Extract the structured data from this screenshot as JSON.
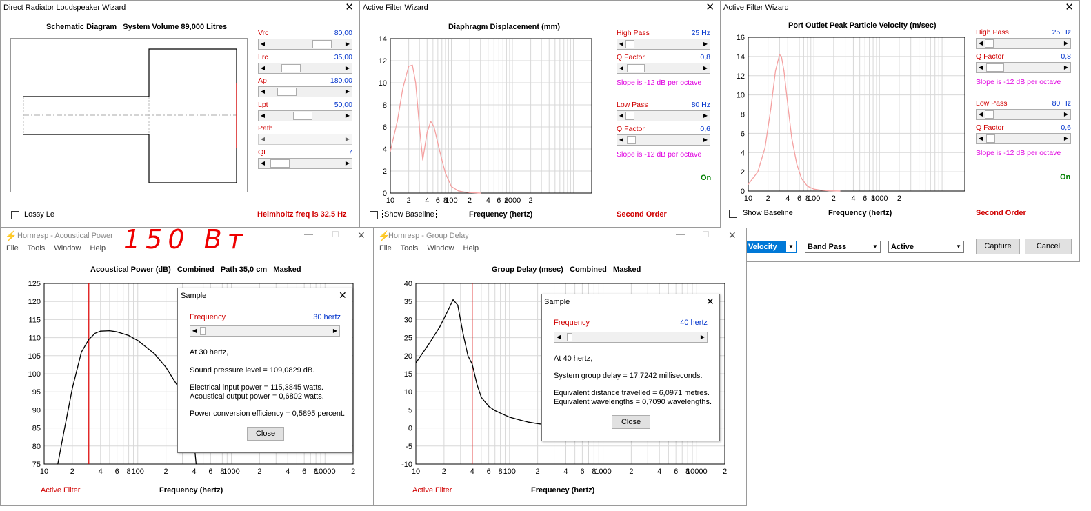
{
  "colors": {
    "accent_red": "#d00000",
    "value_blue": "#0033cc",
    "slope_magenta": "#e000e0",
    "on_green": "#008000",
    "curve_pink": "#f4a0a0"
  },
  "win1": {
    "title": "Direct Radiator Loudspeaker Wizard",
    "heading": "Schematic Diagram   System Volume 89,000 Litres",
    "sliders": [
      {
        "label": "Vrc",
        "value": "80,00",
        "pos": 0.78
      },
      {
        "label": "Lrc",
        "value": "35,00",
        "pos": 0.25
      },
      {
        "label": "Ap",
        "value": "180,00",
        "pos": 0.18
      },
      {
        "label": "Lpt",
        "value": "50,00",
        "pos": 0.45
      },
      {
        "label": "Path",
        "value": "",
        "pos": 0.0
      },
      {
        "label": "QL",
        "value": "7",
        "pos": 0.06
      }
    ],
    "lossy": "Lossy Le",
    "helmholtz": "Helmholtz freq is 32,5 Hz"
  },
  "win2": {
    "title": "Active Filter Wizard",
    "heading": "Diaphragm Displacement (mm)",
    "high_pass_label": "High Pass",
    "high_pass_value": "25 Hz",
    "q1_label": "Q Factor",
    "q1_value": "0,8",
    "slope1": "Slope is -12 dB per octave",
    "low_pass_label": "Low Pass",
    "low_pass_value": "80 Hz",
    "q2_label": "Q Factor",
    "q2_value": "0,6",
    "slope2": "Slope is -12 dB per octave",
    "on": "On",
    "show_baseline": "Show Baseline",
    "xlabel": "Frequency (hertz)",
    "order": "Second Order"
  },
  "win3": {
    "title": "Active Filter Wizard",
    "heading": "Port Outlet Peak Particle Velocity (m/sec)",
    "high_pass_label": "High Pass",
    "high_pass_value": "25 Hz",
    "q1_label": "Q Factor",
    "q1_value": "0,8",
    "slope1": "Slope is -12 dB per octave",
    "low_pass_label": "Low Pass",
    "low_pass_value": "80 Hz",
    "q2_label": "Q Factor",
    "q2_value": "0,6",
    "slope2": "Slope is -12 dB per octave",
    "on": "On",
    "show_baseline": "Show Baseline",
    "xlabel": "Frequency (hertz)",
    "order": "Second Order",
    "dropdowns": [
      "Velocity",
      "Band Pass",
      "Active"
    ],
    "capture": "Capture",
    "cancel": "Cancel"
  },
  "win4": {
    "title": "Hornresp - Acoustical Power",
    "menu": [
      "File",
      "Tools",
      "Window",
      "Help"
    ],
    "handwriting": "150 Вт",
    "heading": "Acoustical Power (dB)   Combined   Path 35,0 cm   Masked",
    "active_filter": "Active Filter",
    "xlabel": "Frequency (hertz)",
    "sample": {
      "title": "Sample",
      "freq_label": "Frequency",
      "freq_value": "30 hertz",
      "line1": "At 30 hertz,",
      "line2": "Sound pressure level = 109,0829 dB.",
      "line3": "Electrical input power = 115,3845 watts.",
      "line4": "Acoustical output power = 0,6802 watts.",
      "line5": "Power conversion efficiency = 0,5895 percent.",
      "close": "Close"
    }
  },
  "win5": {
    "title": "Hornresp - Group Delay",
    "menu": [
      "File",
      "Tools",
      "Window",
      "Help"
    ],
    "heading": "Group Delay (msec)   Combined   Masked",
    "active_filter": "Active Filter",
    "xlabel": "Frequency (hertz)",
    "sample": {
      "title": "Sample",
      "freq_label": "Frequency",
      "freq_value": "40 hertz",
      "line1": "At 40 hertz,",
      "line2": "System group delay = 17,7242 milliseconds.",
      "line3": "Equivalent distance travelled = 6,0971 metres.",
      "line4": "Equivalent wavelengths = 0,7090 wavelengths.",
      "close": "Close"
    }
  },
  "chart_data": [
    {
      "type": "line",
      "title": "Diaphragm Displacement (mm)",
      "xlabel": "Frequency (hertz)",
      "ylabel": "",
      "x_scale": "log",
      "xlim": [
        10,
        20000
      ],
      "ylim": [
        0,
        14
      ],
      "x_ticks": [
        "10",
        "2",
        "4",
        "6",
        "8",
        "100",
        "2",
        "4",
        "6",
        "8",
        "1000",
        "2"
      ],
      "y_ticks": [
        "0",
        "2",
        "4",
        "6",
        "8",
        "10",
        "12",
        "14"
      ],
      "series": [
        {
          "x": [
            10,
            13,
            16,
            20,
            23,
            26,
            30,
            34,
            40,
            46,
            52,
            60,
            70,
            80,
            100,
            130,
            160,
            200,
            300
          ],
          "y": [
            3.8,
            6.5,
            9.5,
            11.5,
            11.6,
            10.0,
            6.0,
            3.0,
            5.5,
            6.5,
            6.0,
            4.5,
            3.0,
            1.8,
            0.6,
            0.2,
            0.1,
            0.05,
            0
          ]
        }
      ]
    },
    {
      "type": "line",
      "title": "Port Outlet Peak Particle Velocity (m/sec)",
      "xlabel": "Frequency (hertz)",
      "ylabel": "",
      "x_scale": "log",
      "xlim": [
        10,
        20000
      ],
      "ylim": [
        0,
        16
      ],
      "x_ticks": [
        "10",
        "2",
        "4",
        "6",
        "8",
        "100",
        "2",
        "4",
        "6",
        "8",
        "1000",
        "2"
      ],
      "y_ticks": [
        "0",
        "2",
        "4",
        "6",
        "8",
        "10",
        "12",
        "14",
        "16"
      ],
      "series": [
        {
          "x": [
            10,
            14,
            18,
            22,
            26,
            30,
            32,
            35,
            40,
            46,
            55,
            65,
            80,
            100,
            130,
            170,
            250
          ],
          "y": [
            0.7,
            2.0,
            4.5,
            8.5,
            12.5,
            14.2,
            14.0,
            12.5,
            9.0,
            5.5,
            2.8,
            1.3,
            0.5,
            0.2,
            0.08,
            0.03,
            0
          ]
        }
      ]
    },
    {
      "type": "line",
      "title": "Acoustical Power (dB)   Combined   Path 35,0 cm   Masked",
      "xlabel": "Frequency (hertz)",
      "ylabel": "",
      "x_scale": "log",
      "xlim": [
        10,
        20000
      ],
      "ylim": [
        75,
        125
      ],
      "x_ticks": [
        "10",
        "2",
        "4",
        "6",
        "8",
        "100",
        "2",
        "4",
        "6",
        "8",
        "1000",
        "2",
        "4",
        "6",
        "8",
        "10000",
        "2"
      ],
      "y_ticks": [
        "75",
        "80",
        "85",
        "90",
        "95",
        "100",
        "105",
        "110",
        "115",
        "120",
        "125"
      ],
      "marker_x": 30,
      "series": [
        {
          "x": [
            14,
            16,
            20,
            25,
            30,
            35,
            40,
            50,
            60,
            80,
            100,
            150,
            200,
            300,
            380,
            420
          ],
          "y": [
            75,
            83,
            96,
            106,
            109.5,
            111.2,
            111.8,
            111.9,
            111.6,
            110.6,
            109.2,
            105.6,
            101.8,
            94.5,
            87,
            75
          ]
        }
      ]
    },
    {
      "type": "line",
      "title": "Group Delay (msec)   Combined   Masked",
      "xlabel": "Frequency (hertz)",
      "ylabel": "",
      "x_scale": "log",
      "xlim": [
        10,
        20000
      ],
      "ylim": [
        -10,
        40
      ],
      "x_ticks": [
        "10",
        "2",
        "4",
        "6",
        "8",
        "100",
        "2",
        "4",
        "6",
        "8",
        "1000",
        "2",
        "4",
        "6",
        "8",
        "10000",
        "2"
      ],
      "y_ticks": [
        "-10",
        "-5",
        "0",
        "5",
        "10",
        "15",
        "20",
        "25",
        "30",
        "35",
        "40"
      ],
      "marker_x": 40,
      "series": [
        {
          "x": [
            10,
            14,
            18,
            22,
            25,
            28,
            32,
            36,
            40,
            45,
            50,
            60,
            70,
            85,
            100,
            130,
            160,
            200,
            240
          ],
          "y": [
            18,
            23.5,
            28,
            32.5,
            35.5,
            34,
            26,
            20,
            17.7,
            12,
            8.5,
            6,
            4.8,
            3.8,
            3.0,
            2.2,
            1.6,
            1.2,
            0.9
          ]
        }
      ]
    }
  ]
}
